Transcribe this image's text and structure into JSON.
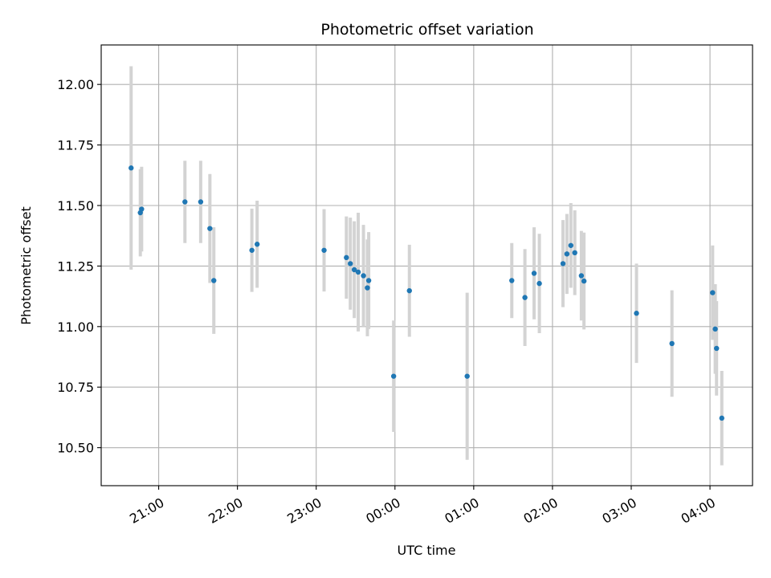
{
  "chart_data": {
    "type": "scatter",
    "title": "Photometric offset variation",
    "xlabel": "UTC time",
    "ylabel": "Photometric offset",
    "grid": true,
    "x_domain_hours": [
      20.27,
      28.54
    ],
    "x_ticks": [
      {
        "hour": 21,
        "label": "21:00"
      },
      {
        "hour": 22,
        "label": "22:00"
      },
      {
        "hour": 23,
        "label": "23:00"
      },
      {
        "hour": 24,
        "label": "00:00"
      },
      {
        "hour": 25,
        "label": "01:00"
      },
      {
        "hour": 26,
        "label": "02:00"
      },
      {
        "hour": 27,
        "label": "03:00"
      },
      {
        "hour": 28,
        "label": "04:00"
      }
    ],
    "ylim": [
      10.343,
      12.163
    ],
    "y_ticks": [
      {
        "value": 10.5,
        "label": "10.50"
      },
      {
        "value": 10.75,
        "label": "10.75"
      },
      {
        "value": 11.0,
        "label": "11.00"
      },
      {
        "value": 11.25,
        "label": "11.25"
      },
      {
        "value": 11.5,
        "label": "11.50"
      },
      {
        "value": 11.75,
        "label": "11.75"
      },
      {
        "value": 12.0,
        "label": "12.00"
      }
    ],
    "colors": {
      "point": "#1f77b4",
      "errorbar": "#d3d3d3",
      "grid": "#b0b0b0"
    },
    "points": [
      {
        "t": "20:39",
        "y": 11.655,
        "err": 0.42
      },
      {
        "t": "20:46",
        "y": 11.47,
        "err": 0.18
      },
      {
        "t": "20:47",
        "y": 11.485,
        "err": 0.175
      },
      {
        "t": "21:20",
        "y": 11.515,
        "err": 0.17
      },
      {
        "t": "21:32",
        "y": 11.515,
        "err": 0.17
      },
      {
        "t": "21:39",
        "y": 11.405,
        "err": 0.225
      },
      {
        "t": "21:42",
        "y": 11.19,
        "err": 0.22
      },
      {
        "t": "22:11",
        "y": 11.315,
        "err": 0.172
      },
      {
        "t": "22:15",
        "y": 11.34,
        "err": 0.18
      },
      {
        "t": "23:06",
        "y": 11.315,
        "err": 0.17
      },
      {
        "t": "23:23",
        "y": 11.285,
        "err": 0.17
      },
      {
        "t": "23:26",
        "y": 11.26,
        "err": 0.19
      },
      {
        "t": "23:29",
        "y": 11.235,
        "err": 0.2
      },
      {
        "t": "23:32",
        "y": 11.225,
        "err": 0.245
      },
      {
        "t": "23:36",
        "y": 11.21,
        "err": 0.21
      },
      {
        "t": "23:39",
        "y": 11.16,
        "err": 0.2
      },
      {
        "t": "23:40",
        "y": 11.19,
        "err": 0.2
      },
      {
        "t": "23:59",
        "y": 10.795,
        "err": 0.23
      },
      {
        "t": "00:11",
        "y": 11.148,
        "err": 0.19
      },
      {
        "t": "00:55",
        "y": 10.795,
        "err": 0.345
      },
      {
        "t": "01:29",
        "y": 11.19,
        "err": 0.155
      },
      {
        "t": "01:39",
        "y": 11.12,
        "err": 0.2
      },
      {
        "t": "01:46",
        "y": 11.22,
        "err": 0.19
      },
      {
        "t": "01:50",
        "y": 11.178,
        "err": 0.205
      },
      {
        "t": "02:08",
        "y": 11.26,
        "err": 0.18
      },
      {
        "t": "02:11",
        "y": 11.3,
        "err": 0.165
      },
      {
        "t": "02:14",
        "y": 11.335,
        "err": 0.175
      },
      {
        "t": "02:17",
        "y": 11.305,
        "err": 0.175
      },
      {
        "t": "02:22",
        "y": 11.21,
        "err": 0.185
      },
      {
        "t": "02:24",
        "y": 11.188,
        "err": 0.2
      },
      {
        "t": "03:04",
        "y": 11.055,
        "err": 0.205
      },
      {
        "t": "03:31",
        "y": 10.93,
        "err": 0.22
      },
      {
        "t": "04:02",
        "y": 11.14,
        "err": 0.195
      },
      {
        "t": "04:04",
        "y": 10.99,
        "err": 0.185
      },
      {
        "t": "04:05",
        "y": 10.91,
        "err": 0.195
      },
      {
        "t": "04:09",
        "y": 10.622,
        "err": 0.195
      }
    ]
  }
}
